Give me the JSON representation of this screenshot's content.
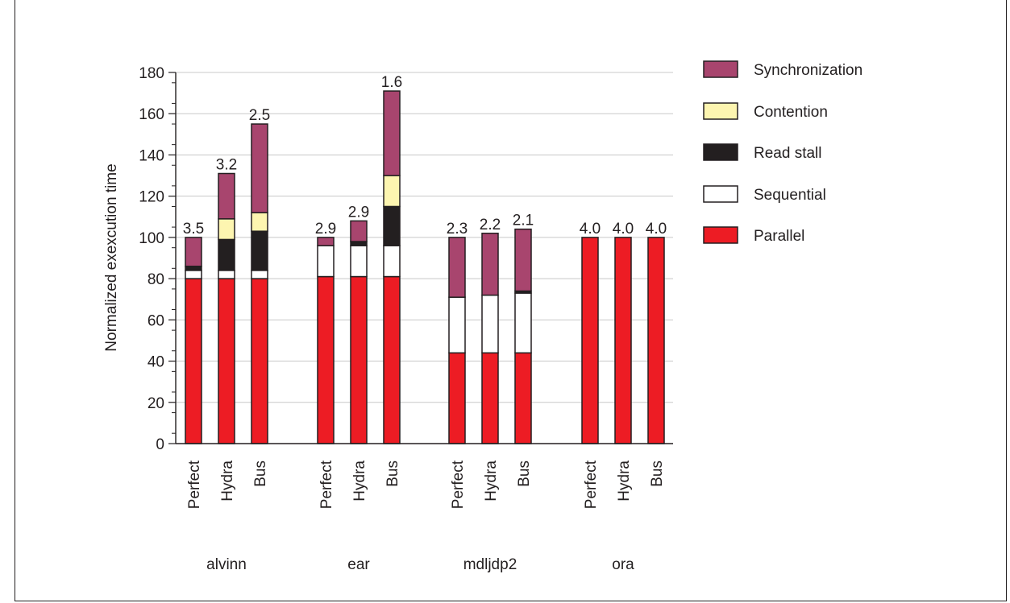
{
  "chart_data": {
    "type": "bar",
    "stacked": true,
    "title": "",
    "ylabel": "Normalized exexcution time",
    "xlabel": "",
    "ylim": [
      0,
      180
    ],
    "yticks": [
      0,
      20,
      40,
      60,
      80,
      100,
      120,
      140,
      160,
      180
    ],
    "grid": "horizontal",
    "legend_position": "right",
    "groups": [
      {
        "name": "alvinn",
        "bars": [
          {
            "label": "Perfect",
            "speedup": "3.5",
            "values": {
              "Parallel": 80,
              "Sequential": 4,
              "Read stall": 2,
              "Contention": 0,
              "Synchronization": 14
            }
          },
          {
            "label": "Hydra",
            "speedup": "3.2",
            "values": {
              "Parallel": 80,
              "Sequential": 4,
              "Read stall": 15,
              "Contention": 10,
              "Synchronization": 22
            }
          },
          {
            "label": "Bus",
            "speedup": "2.5",
            "values": {
              "Parallel": 80,
              "Sequential": 4,
              "Read stall": 19,
              "Contention": 9,
              "Synchronization": 43
            }
          }
        ]
      },
      {
        "name": "ear",
        "bars": [
          {
            "label": "Perfect",
            "speedup": "2.9",
            "values": {
              "Parallel": 81,
              "Sequential": 15,
              "Read stall": 0,
              "Contention": 0,
              "Synchronization": 4
            }
          },
          {
            "label": "Hydra",
            "speedup": "2.9",
            "values": {
              "Parallel": 81,
              "Sequential": 15,
              "Read stall": 2,
              "Contention": 0,
              "Synchronization": 10
            }
          },
          {
            "label": "Bus",
            "speedup": "1.6",
            "values": {
              "Parallel": 81,
              "Sequential": 15,
              "Read stall": 19,
              "Contention": 15,
              "Synchronization": 41
            }
          }
        ]
      },
      {
        "name": "mdljdp2",
        "bars": [
          {
            "label": "Perfect",
            "speedup": "2.3",
            "values": {
              "Parallel": 44,
              "Sequential": 27,
              "Read stall": 0,
              "Contention": 0,
              "Synchronization": 29
            }
          },
          {
            "label": "Hydra",
            "speedup": "2.2",
            "values": {
              "Parallel": 44,
              "Sequential": 28,
              "Read stall": 0,
              "Contention": 0,
              "Synchronization": 30
            }
          },
          {
            "label": "Bus",
            "speedup": "2.1",
            "values": {
              "Parallel": 44,
              "Sequential": 29,
              "Read stall": 1,
              "Contention": 0,
              "Synchronization": 30
            }
          }
        ]
      },
      {
        "name": "ora",
        "bars": [
          {
            "label": "Perfect",
            "speedup": "4.0",
            "values": {
              "Parallel": 100,
              "Sequential": 0,
              "Read stall": 0,
              "Contention": 0,
              "Synchronization": 0
            }
          },
          {
            "label": "Hydra",
            "speedup": "4.0",
            "values": {
              "Parallel": 100,
              "Sequential": 0,
              "Read stall": 0,
              "Contention": 0,
              "Synchronization": 0
            }
          },
          {
            "label": "Bus",
            "speedup": "4.0",
            "values": {
              "Parallel": 100,
              "Sequential": 0,
              "Read stall": 0,
              "Contention": 0,
              "Synchronization": 0
            }
          }
        ]
      }
    ],
    "stack_order": [
      "Parallel",
      "Sequential",
      "Read stall",
      "Contention",
      "Synchronization"
    ],
    "legend": [
      {
        "name": "Synchronization",
        "color": "#a8456e"
      },
      {
        "name": "Contention",
        "color": "#fdf5b0"
      },
      {
        "name": "Read stall",
        "color": "#231f20"
      },
      {
        "name": "Sequential",
        "color": "#ffffff"
      },
      {
        "name": "Parallel",
        "color": "#ed1c24"
      }
    ]
  }
}
